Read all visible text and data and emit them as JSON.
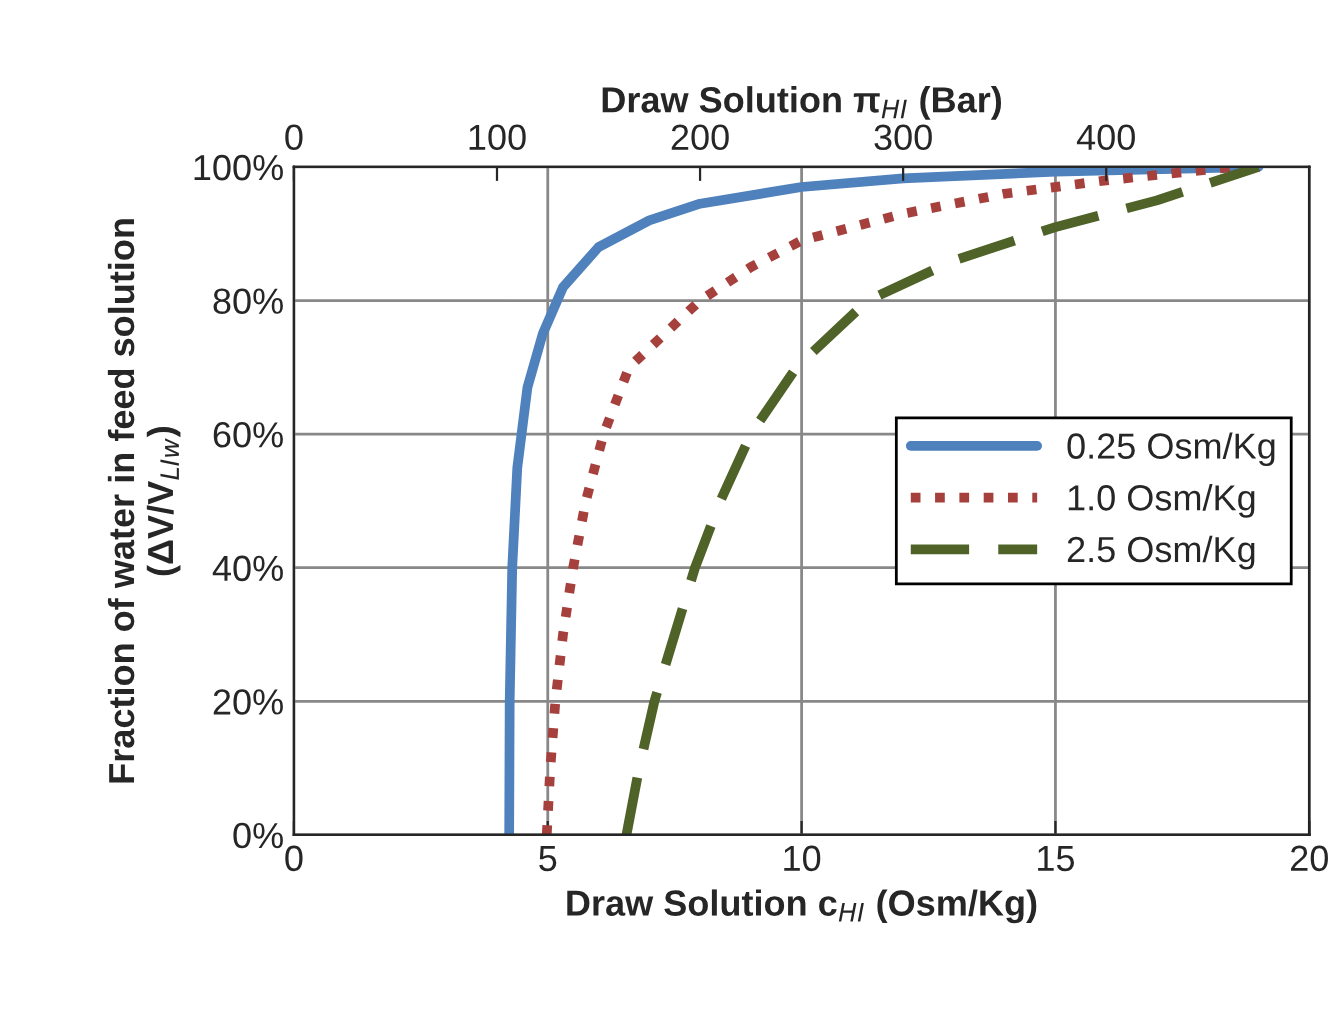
{
  "chart_data": {
    "type": "line",
    "xlabel": "Draw Solution c$_{HI}$ (Osm/Kg)",
    "x2label": "Draw Solution π$_{HI}$ (Bar)",
    "ylabel": "Fraction of water in feed solution\n(ΔV/V$_{LIw}$)",
    "xlim": [
      0,
      20
    ],
    "xticks": [
      0,
      5,
      10,
      15,
      20
    ],
    "x2lim": [
      0,
      500
    ],
    "x2ticks": [
      0,
      100,
      200,
      300,
      400
    ],
    "ylim": [
      0,
      100
    ],
    "yticks": [
      {
        "value": 0,
        "label": "0%"
      },
      {
        "value": 20,
        "label": "20%"
      },
      {
        "value": 40,
        "label": "40%"
      },
      {
        "value": 60,
        "label": "60%"
      },
      {
        "value": 80,
        "label": "80%"
      },
      {
        "value": 100,
        "label": "100%"
      }
    ],
    "grid": true,
    "legend": "right",
    "marker": "none",
    "series": [
      {
        "name": "0.25 Osm/Kg",
        "color": "#4f81bd",
        "line_style": "solid",
        "x": [
          4.24,
          4.25,
          4.3,
          4.4,
          4.6,
          4.9,
          5.3,
          6,
          7,
          8,
          10,
          12,
          15,
          19
        ],
        "values": [
          0,
          20,
          40,
          55,
          67,
          75,
          82,
          88,
          92,
          94.5,
          97,
          98.3,
          99.3,
          100
        ]
      },
      {
        "name": "1.0 Osm/Kg",
        "color": "#a5403c",
        "line_style": "dotted",
        "x": [
          4.98,
          5.05,
          5.15,
          5.3,
          5.5,
          5.75,
          6.1,
          6.6,
          7.3,
          8,
          9,
          10,
          12,
          14,
          16,
          18.5
        ],
        "values": [
          0,
          10,
          20,
          30,
          40,
          50,
          60,
          70,
          75,
          80,
          85,
          89,
          93,
          96,
          98,
          100
        ]
      },
      {
        "name": "2.5 Osm/Kg",
        "color": "#4f6228",
        "line_style": "dashed",
        "x": [
          6.55,
          6.8,
          7.1,
          7.5,
          7.9,
          8.4,
          9.0,
          9.9,
          11.3,
          13,
          15,
          17,
          19
        ],
        "values": [
          0,
          10,
          20,
          30,
          40,
          50,
          60,
          70,
          80,
          86,
          91,
          95,
          100
        ]
      }
    ]
  }
}
